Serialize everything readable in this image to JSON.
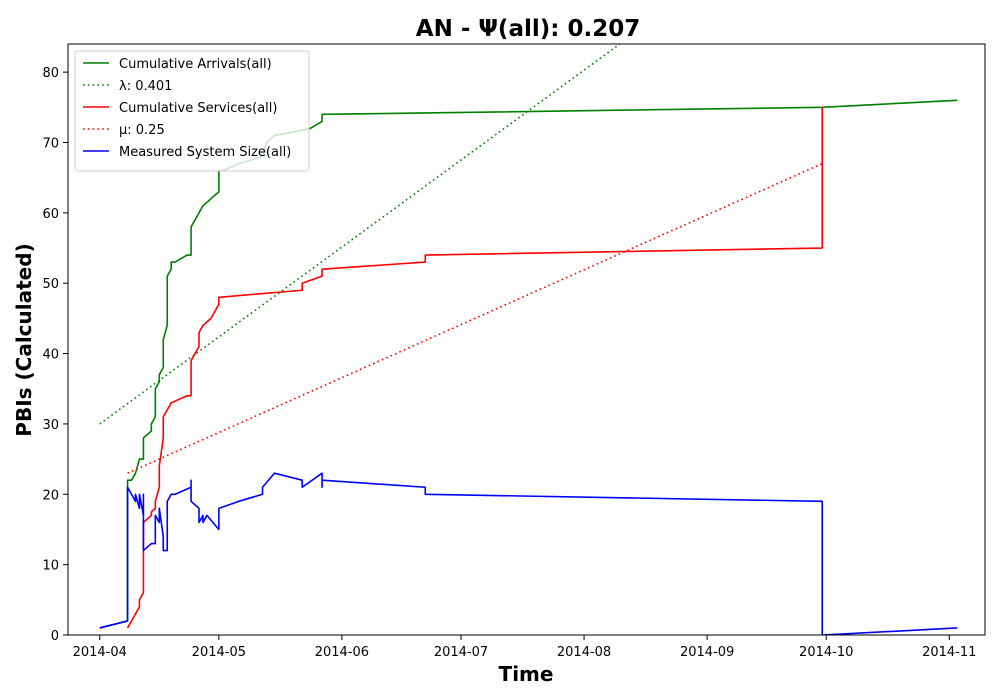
{
  "chart_data": {
    "type": "line",
    "title": "AN -  Ψ(all): 0.207",
    "xlabel": "Time",
    "ylabel": "PBIs (Calculated)",
    "x_type": "date",
    "xlim": [
      "2014-03-24",
      "2014-11-10"
    ],
    "ylim": [
      0,
      84
    ],
    "x_ticks": [
      "2014-04-01",
      "2014-05-01",
      "2014-06-01",
      "2014-07-01",
      "2014-08-01",
      "2014-09-01",
      "2014-10-01",
      "2014-11-01"
    ],
    "x_tick_labels": [
      "2014-04",
      "2014-05",
      "2014-06",
      "2014-07",
      "2014-08",
      "2014-09",
      "2014-10",
      "2014-11"
    ],
    "y_ticks": [
      0,
      10,
      20,
      30,
      40,
      50,
      60,
      70,
      80
    ],
    "y_tick_labels": [
      "0",
      "10",
      "20",
      "30",
      "40",
      "50",
      "60",
      "70",
      "80"
    ],
    "grid": false,
    "legend_position": "top-left",
    "series": [
      {
        "name": "Cumulative Arrivals(all)",
        "color": "#008000",
        "style": "solid",
        "points": [
          [
            "2014-04-01",
            1
          ],
          [
            "2014-04-08",
            2
          ],
          [
            "2014-04-08",
            15
          ],
          [
            "2014-04-08",
            22
          ],
          [
            "2014-04-09",
            22
          ],
          [
            "2014-04-10",
            23
          ],
          [
            "2014-04-11",
            25
          ],
          [
            "2014-04-12",
            25
          ],
          [
            "2014-04-12",
            28
          ],
          [
            "2014-04-13",
            28.5
          ],
          [
            "2014-04-14",
            29
          ],
          [
            "2014-04-14",
            30
          ],
          [
            "2014-04-15",
            31
          ],
          [
            "2014-04-15",
            32
          ],
          [
            "2014-04-15",
            33
          ],
          [
            "2014-04-15",
            35
          ],
          [
            "2014-04-16",
            36
          ],
          [
            "2014-04-16",
            37
          ],
          [
            "2014-04-17",
            38
          ],
          [
            "2014-04-17",
            42
          ],
          [
            "2014-04-18",
            44
          ],
          [
            "2014-04-18",
            51
          ],
          [
            "2014-04-19",
            52
          ],
          [
            "2014-04-19",
            53
          ],
          [
            "2014-04-20",
            53
          ],
          [
            "2014-04-23",
            54
          ],
          [
            "2014-04-24",
            54
          ],
          [
            "2014-04-24",
            58
          ],
          [
            "2014-04-25",
            59
          ],
          [
            "2014-04-26",
            60
          ],
          [
            "2014-04-27",
            61
          ],
          [
            "2014-04-29",
            62
          ],
          [
            "2014-05-01",
            63
          ],
          [
            "2014-05-01",
            66
          ],
          [
            "2014-05-02",
            66
          ],
          [
            "2014-05-06",
            67
          ],
          [
            "2014-05-12",
            68
          ],
          [
            "2014-05-13",
            70
          ],
          [
            "2014-05-15",
            71
          ],
          [
            "2014-05-20",
            71.5
          ],
          [
            "2014-05-24",
            72
          ],
          [
            "2014-05-27",
            73
          ],
          [
            "2014-05-27",
            74
          ],
          [
            "2014-06-22",
            74.2
          ],
          [
            "2014-09-30",
            75
          ],
          [
            "2014-11-03",
            76
          ]
        ]
      },
      {
        "name": "λ: 0.401",
        "color": "#008000",
        "style": "dotted",
        "points": [
          [
            "2014-04-01",
            30
          ],
          [
            "2014-08-10",
            84
          ]
        ]
      },
      {
        "name": "Cumulative Services(all)",
        "color": "#ff0000",
        "style": "solid",
        "points": [
          [
            "2014-04-08",
            1
          ],
          [
            "2014-04-10",
            3
          ],
          [
            "2014-04-11",
            4
          ],
          [
            "2014-04-11",
            5
          ],
          [
            "2014-04-12",
            6
          ],
          [
            "2014-04-12",
            16
          ],
          [
            "2014-04-14",
            17
          ],
          [
            "2014-04-14",
            17.5
          ],
          [
            "2014-04-15",
            18
          ],
          [
            "2014-04-15",
            19
          ],
          [
            "2014-04-16",
            21
          ],
          [
            "2014-04-16",
            24
          ],
          [
            "2014-04-17",
            28
          ],
          [
            "2014-04-17",
            31
          ],
          [
            "2014-04-18",
            32
          ],
          [
            "2014-04-19",
            33
          ],
          [
            "2014-04-23",
            34
          ],
          [
            "2014-04-24",
            34
          ],
          [
            "2014-04-24",
            39
          ],
          [
            "2014-04-25",
            40
          ],
          [
            "2014-04-26",
            41
          ],
          [
            "2014-04-26",
            43
          ],
          [
            "2014-04-27",
            44
          ],
          [
            "2014-04-28",
            44.5
          ],
          [
            "2014-04-29",
            45
          ],
          [
            "2014-04-30",
            46
          ],
          [
            "2014-05-01",
            47
          ],
          [
            "2014-05-01",
            48
          ],
          [
            "2014-05-22",
            49
          ],
          [
            "2014-05-22",
            50
          ],
          [
            "2014-05-27",
            51
          ],
          [
            "2014-05-27",
            52
          ],
          [
            "2014-06-22",
            53
          ],
          [
            "2014-06-22",
            54
          ],
          [
            "2014-09-30",
            55
          ],
          [
            "2014-09-30",
            75
          ]
        ]
      },
      {
        "name": "μ: 0.25",
        "color": "#ff0000",
        "style": "dotted",
        "points": [
          [
            "2014-04-08",
            23
          ],
          [
            "2014-09-30",
            67
          ]
        ]
      },
      {
        "name": "Measured System Size(all)",
        "color": "#0000ff",
        "style": "solid",
        "points": [
          [
            "2014-04-01",
            1
          ],
          [
            "2014-04-08",
            2
          ],
          [
            "2014-04-08",
            14
          ],
          [
            "2014-04-08",
            15
          ],
          [
            "2014-04-08",
            21
          ],
          [
            "2014-04-09",
            20
          ],
          [
            "2014-04-10",
            19
          ],
          [
            "2014-04-10",
            20
          ],
          [
            "2014-04-11",
            18
          ],
          [
            "2014-04-11",
            20
          ],
          [
            "2014-04-12",
            17
          ],
          [
            "2014-04-12",
            20
          ],
          [
            "2014-04-12",
            12
          ],
          [
            "2014-04-14",
            13
          ],
          [
            "2014-04-15",
            13
          ],
          [
            "2014-04-15",
            17
          ],
          [
            "2014-04-16",
            16
          ],
          [
            "2014-04-16",
            18
          ],
          [
            "2014-04-17",
            14
          ],
          [
            "2014-04-17",
            12
          ],
          [
            "2014-04-18",
            12
          ],
          [
            "2014-04-18",
            14
          ],
          [
            "2014-04-18",
            19
          ],
          [
            "2014-04-19",
            20
          ],
          [
            "2014-04-20",
            20
          ],
          [
            "2014-04-24",
            21
          ],
          [
            "2014-04-24",
            22
          ],
          [
            "2014-04-24",
            19
          ],
          [
            "2014-04-26",
            18
          ],
          [
            "2014-04-26",
            16
          ],
          [
            "2014-04-27",
            17
          ],
          [
            "2014-04-27",
            16
          ],
          [
            "2014-04-28",
            17
          ],
          [
            "2014-05-01",
            15
          ],
          [
            "2014-05-01",
            18
          ],
          [
            "2014-05-06",
            19
          ],
          [
            "2014-05-12",
            20
          ],
          [
            "2014-05-12",
            21
          ],
          [
            "2014-05-15",
            23
          ],
          [
            "2014-05-22",
            22
          ],
          [
            "2014-05-22",
            21
          ],
          [
            "2014-05-27",
            23
          ],
          [
            "2014-05-27",
            21
          ],
          [
            "2014-05-27",
            22
          ],
          [
            "2014-06-22",
            21
          ],
          [
            "2014-06-22",
            20
          ],
          [
            "2014-09-30",
            19
          ],
          [
            "2014-09-30",
            0
          ],
          [
            "2014-11-03",
            1
          ]
        ]
      }
    ]
  }
}
